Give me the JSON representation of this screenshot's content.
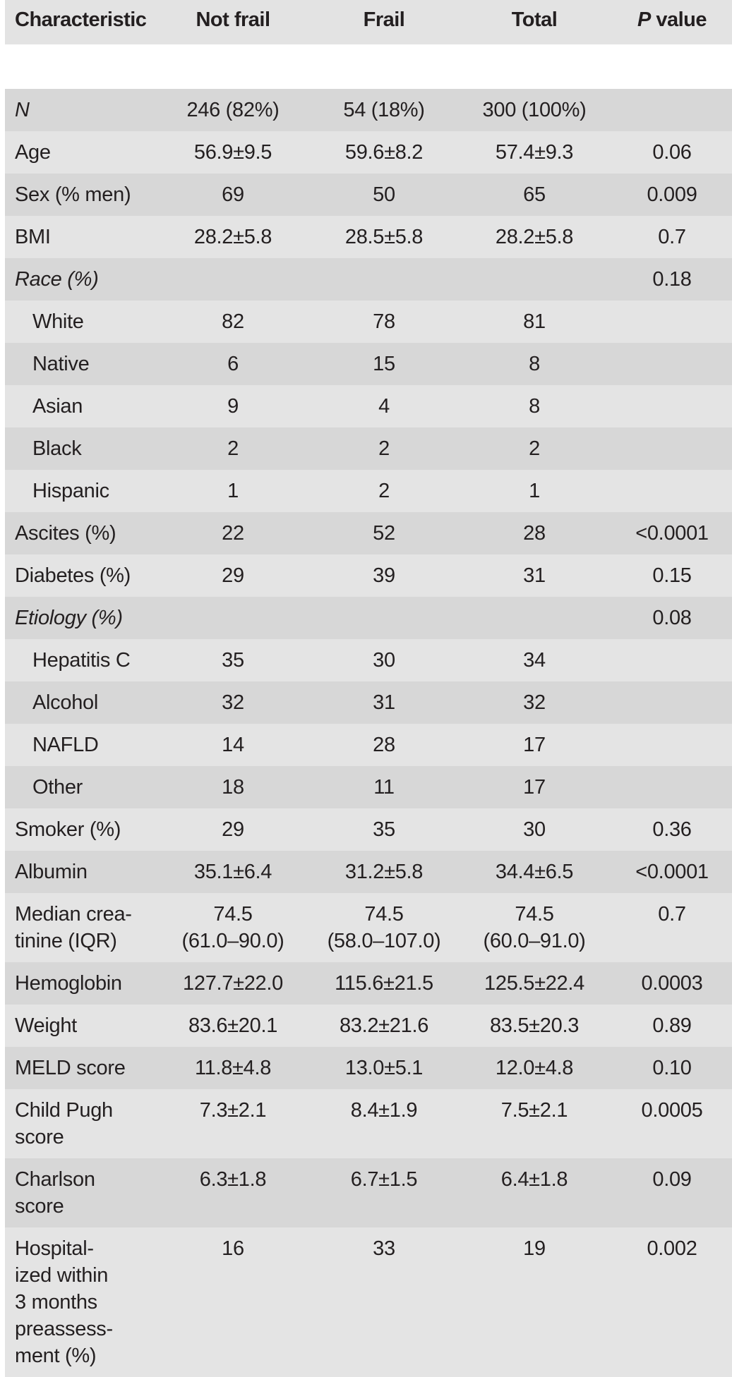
{
  "table": {
    "headers": {
      "characteristic": "Characteristic",
      "not_frail": "Not frail",
      "frail": "Frail",
      "total": "Total",
      "p_italic": "P",
      "p_rest": " value"
    },
    "rows": [
      {
        "label": "N",
        "not_frail": "246 (82%)",
        "frail": "54 (18%)",
        "total": "300 (100%)",
        "p": "",
        "style": "italic"
      },
      {
        "label": "Age",
        "not_frail": "56.9±9.5",
        "frail": "59.6±8.2",
        "total": "57.4±9.3",
        "p": "0.06"
      },
      {
        "label": "Sex (% men)",
        "not_frail": "69",
        "frail": "50",
        "total": "65",
        "p": "0.009"
      },
      {
        "label": "BMI",
        "not_frail": "28.2±5.8",
        "frail": "28.5±5.8",
        "total": "28.2±5.8",
        "p": "0.7"
      },
      {
        "label": "Race (%)",
        "not_frail": "",
        "frail": "",
        "total": "",
        "p": "0.18",
        "style": "italic"
      },
      {
        "label": "White",
        "not_frail": "82",
        "frail": "78",
        "total": "81",
        "p": "",
        "style": "sub"
      },
      {
        "label": "Native",
        "not_frail": "6",
        "frail": "15",
        "total": "8",
        "p": "",
        "style": "sub"
      },
      {
        "label": "Asian",
        "not_frail": "9",
        "frail": "4",
        "total": "8",
        "p": "",
        "style": "sub"
      },
      {
        "label": "Black",
        "not_frail": "2",
        "frail": "2",
        "total": "2",
        "p": "",
        "style": "sub"
      },
      {
        "label": "Hispanic",
        "not_frail": "1",
        "frail": "2",
        "total": "1",
        "p": "",
        "style": "sub"
      },
      {
        "label": "Ascites (%)",
        "not_frail": "22",
        "frail": "52",
        "total": "28",
        "p": "<0.0001"
      },
      {
        "label": "Diabetes (%)",
        "not_frail": "29",
        "frail": "39",
        "total": "31",
        "p": "0.15"
      },
      {
        "label": "Etiology (%)",
        "not_frail": "",
        "frail": "",
        "total": "",
        "p": "0.08",
        "style": "italic"
      },
      {
        "label": "Hepatitis C",
        "not_frail": "35",
        "frail": "30",
        "total": "34",
        "p": "",
        "style": "sub"
      },
      {
        "label": "Alcohol",
        "not_frail": "32",
        "frail": "31",
        "total": "32",
        "p": "",
        "style": "sub"
      },
      {
        "label": "NAFLD",
        "not_frail": "14",
        "frail": "28",
        "total": "17",
        "p": "",
        "style": "sub"
      },
      {
        "label": "Other",
        "not_frail": "18",
        "frail": "11",
        "total": "17",
        "p": "",
        "style": "sub"
      },
      {
        "label": "Smoker (%)",
        "not_frail": "29",
        "frail": "35",
        "total": "30",
        "p": "0.36"
      },
      {
        "label": "Albumin",
        "not_frail": "35.1±6.4",
        "frail": "31.2±5.8",
        "total": "34.4±6.5",
        "p": "<0.0001"
      },
      {
        "label": "Median crea-\ntinine (IQR)",
        "not_frail": "74.5\n(61.0–90.0)",
        "frail": "74.5\n(58.0–107.0)",
        "total": "74.5\n(60.0–91.0)",
        "p": "0.7"
      },
      {
        "label": "Hemoglobin",
        "not_frail": "127.7±22.0",
        "frail": "115.6±21.5",
        "total": "125.5±22.4",
        "p": "0.0003"
      },
      {
        "label": "Weight",
        "not_frail": "83.6±20.1",
        "frail": "83.2±21.6",
        "total": "83.5±20.3",
        "p": "0.89"
      },
      {
        "label": "MELD score",
        "not_frail": "11.8±4.8",
        "frail": "13.0±5.1",
        "total": "12.0±4.8",
        "p": "0.10"
      },
      {
        "label": "Child Pugh\nscore",
        "not_frail": "7.3±2.1",
        "frail": "8.4±1.9",
        "total": "7.5±2.1",
        "p": "0.0005"
      },
      {
        "label": "Charlson\nscore",
        "not_frail": "6.3±1.8",
        "frail": "6.7±1.5",
        "total": "6.4±1.8",
        "p": "0.09"
      },
      {
        "label": "Hospital-\nized within\n3 months\npreassess-\nment (%)",
        "not_frail": "16",
        "frail": "33",
        "total": "19",
        "p": "0.002"
      }
    ]
  },
  "colors": {
    "header_bg": "#e3e3e3",
    "row_light": "#e4e4e4",
    "row_dark": "#d7d7d7",
    "text": "#231f20",
    "separator": "#ffffff"
  }
}
